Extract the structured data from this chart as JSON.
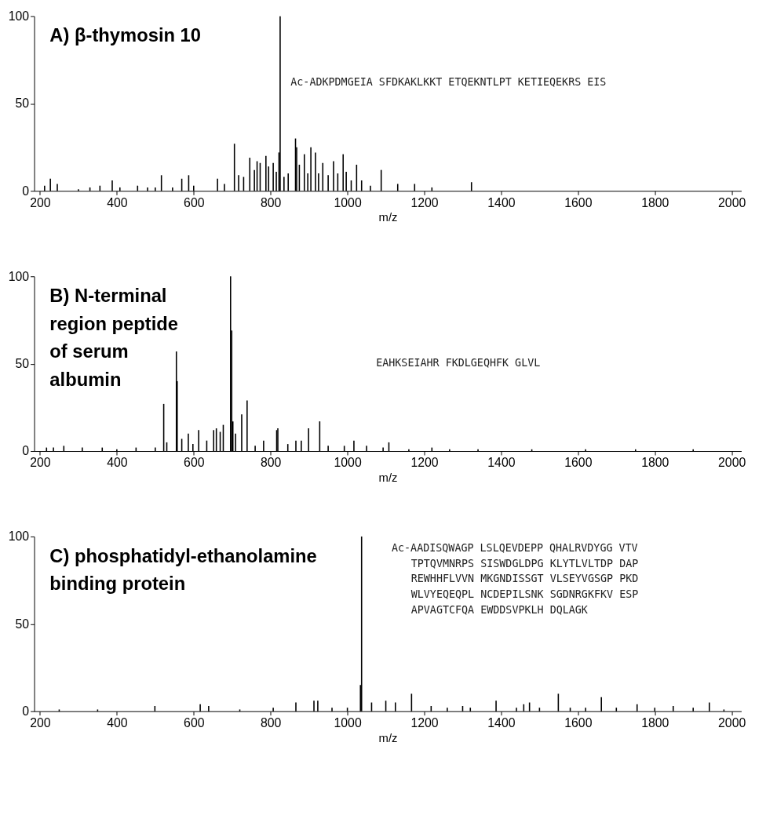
{
  "chart_data": [
    {
      "type": "bar",
      "title": "A) β-thymosin 10",
      "xlabel": "m/z",
      "xlim": [
        195,
        2015
      ],
      "xticks": [
        200,
        400,
        600,
        800,
        1000,
        1200,
        1400,
        1600,
        1800,
        2000
      ],
      "ylim": [
        0,
        100
      ],
      "yticks": [
        0,
        50,
        100
      ],
      "grid": false,
      "x": [
        212,
        227,
        245,
        300,
        330,
        356,
        388,
        408,
        454,
        480,
        500,
        516,
        545,
        569,
        587,
        600,
        662,
        680,
        706,
        717,
        730,
        746,
        758,
        765,
        773,
        788,
        795,
        807,
        815,
        822,
        825,
        835,
        846,
        865,
        868,
        875,
        888,
        897,
        905,
        917,
        925,
        936,
        950,
        964,
        975,
        989,
        997,
        1010,
        1024,
        1037,
        1060,
        1088,
        1131,
        1175,
        1220,
        1323
      ],
      "series": [
        {
          "color": "#000000",
          "values": [
            3,
            7,
            4,
            1,
            2,
            3,
            6,
            2,
            3,
            2,
            2,
            9,
            2,
            7,
            9,
            3,
            7,
            4,
            27,
            9,
            8,
            19,
            12,
            17,
            16,
            20,
            14,
            16,
            11,
            22,
            100,
            8,
            10,
            30,
            25,
            15,
            21,
            10,
            25,
            22,
            10,
            16,
            9,
            17,
            10,
            21,
            11,
            6,
            15,
            6,
            3,
            12,
            4,
            4,
            2,
            5
          ]
        }
      ],
      "annotations": [
        "Ac-ADKPDMGEIA SFDKAKLKKT ETQEKNTLPT KETIEQEKRS EIS"
      ]
    },
    {
      "type": "bar",
      "title": "B) N-terminal\nregion peptide\nof serum\nalbumin",
      "xlabel": "m/z",
      "xlim": [
        195,
        2015
      ],
      "xticks": [
        200,
        400,
        600,
        800,
        1000,
        1200,
        1400,
        1600,
        1800,
        2000
      ],
      "ylim": [
        0,
        100
      ],
      "yticks": [
        0,
        50,
        100
      ],
      "grid": false,
      "x": [
        217,
        235,
        262,
        310,
        362,
        400,
        450,
        500,
        522,
        530,
        555,
        557,
        569,
        586,
        598,
        613,
        634,
        652,
        659,
        669,
        677,
        696,
        699,
        702,
        709,
        725,
        739,
        760,
        782,
        816,
        819,
        845,
        866,
        880,
        899,
        928,
        950,
        992,
        1017,
        1050,
        1093,
        1108,
        1160,
        1220,
        1266,
        1340,
        1480,
        1620,
        1750,
        1900
      ],
      "series": [
        {
          "color": "#000000",
          "values": [
            2,
            2,
            3,
            2,
            2,
            1,
            2,
            2,
            27,
            5,
            57,
            40,
            7,
            10,
            4,
            12,
            6,
            12,
            13,
            11,
            15,
            100,
            69,
            17,
            10,
            21,
            29,
            3,
            6,
            12,
            13,
            4,
            6,
            6,
            13,
            17,
            3,
            3,
            6,
            3,
            2,
            5,
            1,
            2,
            1,
            1,
            1,
            1,
            1,
            1
          ]
        }
      ],
      "annotations": [
        "EAHKSEIAHR FKDLGEQHFK GLVL"
      ]
    },
    {
      "type": "bar",
      "title": "C) phosphatidyl-ethanolamine\nbinding protein",
      "xlabel": "m/z",
      "xlim": [
        195,
        2015
      ],
      "xticks": [
        200,
        400,
        600,
        800,
        1000,
        1200,
        1400,
        1600,
        1800,
        2000
      ],
      "ylim": [
        0,
        100
      ],
      "yticks": [
        0,
        50,
        100
      ],
      "grid": false,
      "x": [
        250,
        350,
        499,
        617,
        639,
        720,
        807,
        866,
        913,
        923,
        960,
        1000,
        1034,
        1037,
        1063,
        1100,
        1125,
        1167,
        1218,
        1260,
        1300,
        1320,
        1387,
        1440,
        1459,
        1474,
        1500,
        1549,
        1580,
        1620,
        1661,
        1700,
        1754,
        1800,
        1848,
        1900,
        1942,
        1980
      ],
      "series": [
        {
          "color": "#000000",
          "values": [
            1,
            1,
            3,
            4,
            3,
            1,
            2,
            5,
            6,
            6,
            2,
            2,
            15,
            100,
            5,
            6,
            5,
            10,
            3,
            2,
            3,
            2,
            6,
            2,
            4,
            5,
            2,
            10,
            2,
            2,
            8,
            2,
            4,
            2,
            3,
            2,
            5,
            1
          ]
        }
      ],
      "annotations": [
        "Ac-AADISQWAGP LSLQEVDEPP QHALRVDYGG VTV",
        "TPTQVMNRPS SISWDGLDPG KLYTLVLTDP DAP",
        "REWHHFLVVN MKGNDISSGT VLSEYVGSGP PKD",
        "WLVYEQEQPL NCDEPILSNK SGDNRGKFKV ESP",
        "APVAGTCFQA EWDDSVPKLH DQLAGK"
      ]
    }
  ]
}
